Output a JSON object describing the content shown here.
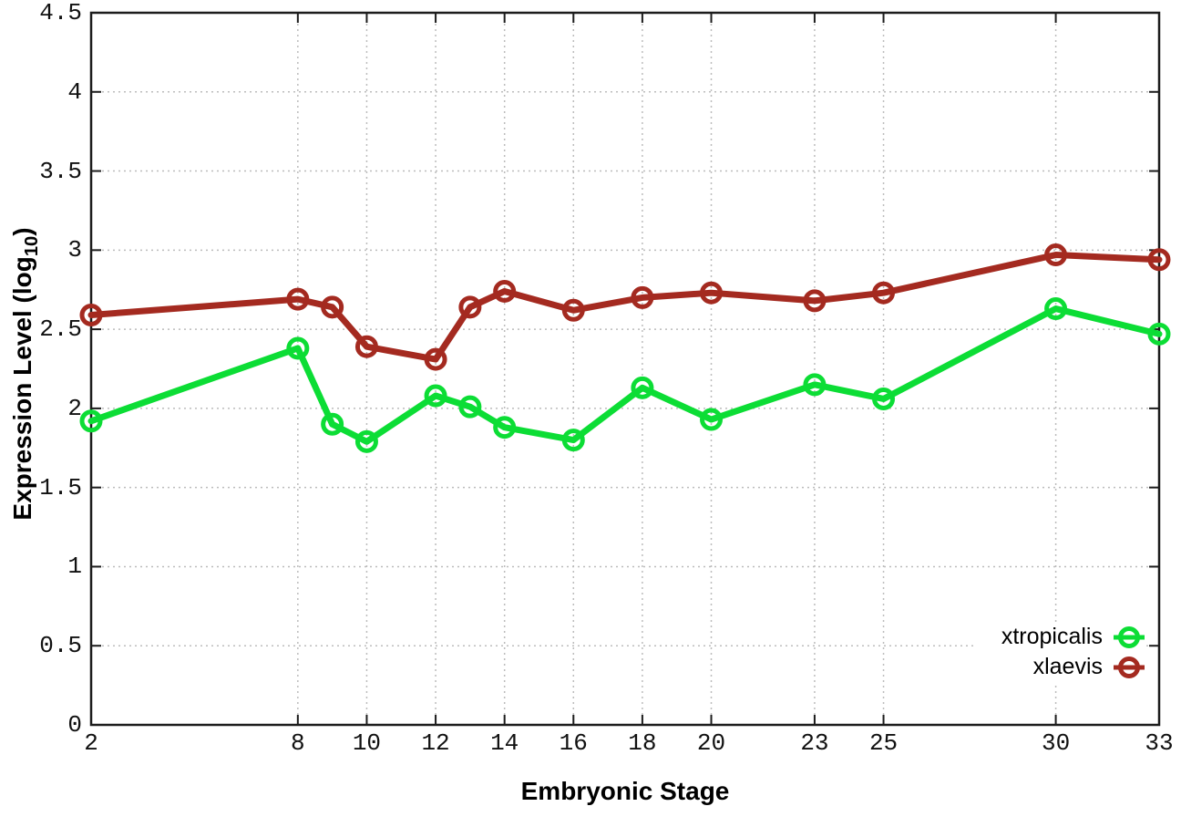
{
  "chart_data": {
    "type": "line",
    "title": "",
    "xlabel": "Embryonic Stage",
    "ylabel": "Expression Level (log10)",
    "ylabel_parts": {
      "main": "Expression Level (log",
      "sub": "10",
      "end": ")"
    },
    "xlim": [
      2,
      33
    ],
    "ylim": [
      0,
      4.5
    ],
    "x_ticks": [
      2,
      8,
      10,
      12,
      14,
      16,
      18,
      20,
      23,
      25,
      30,
      33
    ],
    "x_tick_labels": [
      "2",
      "8",
      "10",
      "12",
      "14",
      "16",
      "18",
      "20",
      "23",
      "25",
      "30",
      "33"
    ],
    "y_ticks": [
      0,
      0.5,
      1,
      1.5,
      2,
      2.5,
      3,
      3.5,
      4,
      4.5
    ],
    "y_tick_labels": [
      "0",
      "0.5",
      "1",
      "1.5",
      "2",
      "2.5",
      "3",
      "3.5",
      "4",
      "4.5"
    ],
    "grid": true,
    "legend_position": "bottom-right",
    "x": [
      2,
      8,
      9,
      10,
      12,
      13,
      14,
      16,
      18,
      20,
      23,
      25,
      30,
      33
    ],
    "series": [
      {
        "name": "xtropicalis",
        "color": "#0cdd35",
        "values": [
          1.92,
          2.38,
          1.9,
          1.79,
          2.08,
          2.01,
          1.88,
          1.8,
          2.13,
          1.93,
          2.15,
          2.06,
          2.63,
          2.47
        ]
      },
      {
        "name": "xlaevis",
        "color": "#a42a20",
        "values": [
          2.59,
          2.69,
          2.64,
          2.39,
          2.31,
          2.64,
          2.74,
          2.62,
          2.7,
          2.73,
          2.68,
          2.73,
          2.97,
          2.94
        ]
      }
    ],
    "styles": {
      "border_color": "#1c1c1c",
      "grid_color": "#bcbcbc",
      "tick_color": "#1c1c1c",
      "line_width": 7,
      "marker_radius": 10,
      "marker_stroke": 5
    }
  }
}
